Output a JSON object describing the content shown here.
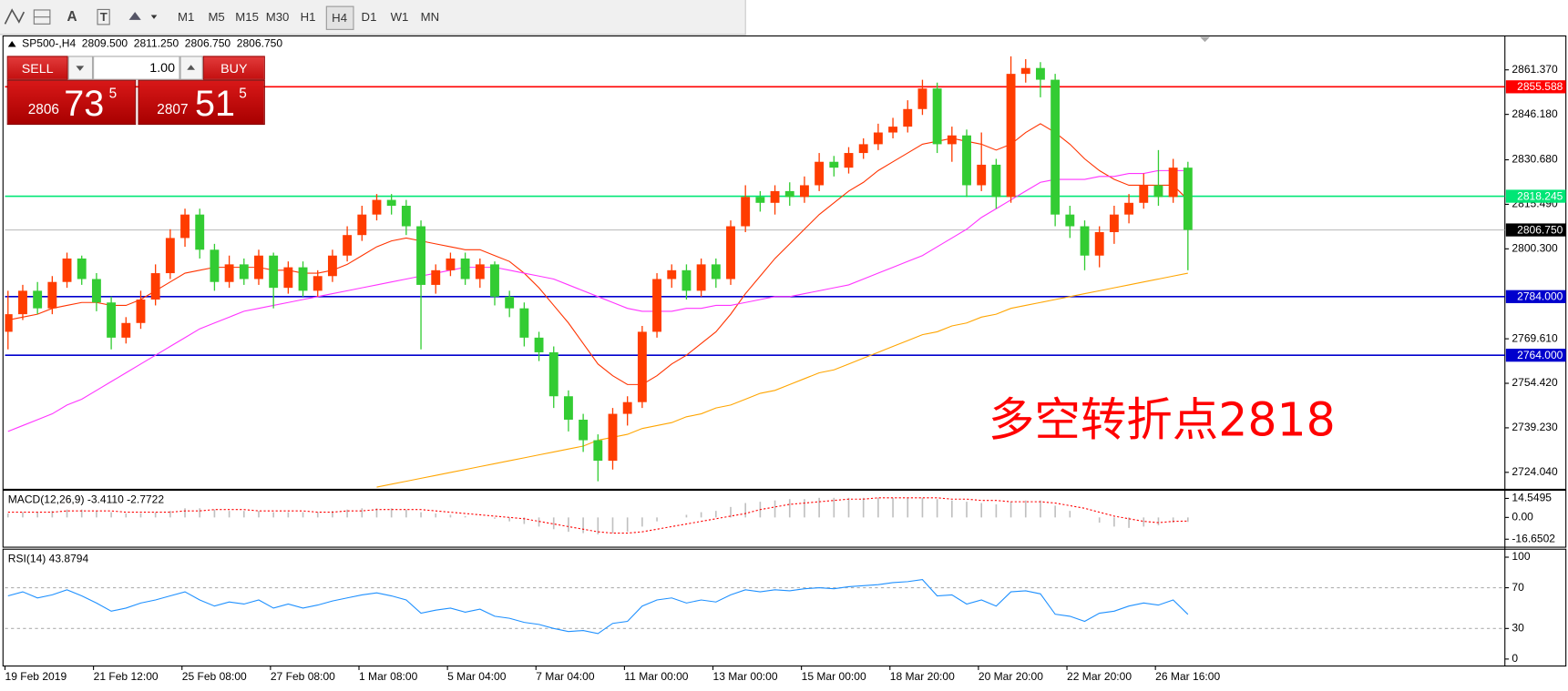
{
  "toolbar": {
    "tools": [
      "A",
      "T"
    ],
    "timeframes": [
      "M1",
      "M5",
      "M15",
      "M30",
      "H1",
      "H4",
      "D1",
      "W1",
      "MN"
    ],
    "selected": "H4"
  },
  "header": {
    "symbol": "SP500-,H4",
    "ohlc": [
      "2809.500",
      "2811.250",
      "2806.750",
      "2806.750"
    ]
  },
  "trade_panel": {
    "sell": "SELL",
    "buy": "BUY",
    "volume": "1.00",
    "sell_price": {
      "big": "2806",
      "pips": "73",
      "point": "5"
    },
    "buy_price": {
      "big": "2807",
      "pips": "51",
      "point": "5"
    }
  },
  "chart_data": [
    {
      "type": "candlestick",
      "categories": [
        "19 Feb 2019",
        null,
        null,
        null,
        null,
        null,
        "21 Feb 12:00",
        null,
        null,
        null,
        null,
        null,
        "25 Feb 08:00",
        null,
        null,
        null,
        null,
        null,
        "27 Feb 08:00",
        null,
        null,
        null,
        null,
        null,
        "1 Mar 08:00",
        null,
        null,
        null,
        null,
        null,
        "5 Mar 04:00",
        null,
        null,
        null,
        null,
        null,
        "7 Mar 04:00",
        null,
        null,
        null,
        null,
        null,
        "11 Mar 00:00",
        null,
        null,
        null,
        null,
        null,
        "13 Mar 00:00",
        null,
        null,
        null,
        null,
        null,
        "15 Mar 00:00",
        null,
        null,
        null,
        null,
        null,
        "18 Mar 20:00",
        null,
        null,
        null,
        null,
        null,
        "20 Mar 20:00",
        null,
        null,
        null,
        null,
        null,
        "22 Mar 20:00",
        null,
        null,
        null,
        null,
        null,
        "26 Mar 16:00",
        null,
        null
      ],
      "open": [
        2772,
        2778,
        2786,
        2780,
        2789,
        2797,
        2790,
        2782,
        2770,
        2775,
        2783,
        2792,
        2804,
        2812,
        2800,
        2789,
        2795,
        2790,
        2798,
        2787,
        2794,
        2786,
        2791,
        2798,
        2805,
        2812,
        2817,
        2815,
        2808,
        2788,
        2793,
        2797,
        2790,
        2795,
        2784,
        2780,
        2770,
        2765,
        2750,
        2742,
        2735,
        2728,
        2744,
        2748,
        2772,
        2790,
        2793,
        2786,
        2795,
        2790,
        2808,
        2818,
        2816,
        2820,
        2818,
        2822,
        2830,
        2828,
        2833,
        2836,
        2840,
        2842,
        2848,
        2855,
        2836,
        2839,
        2822,
        2829,
        2818,
        2860,
        2862,
        2858,
        2812,
        2808,
        2798,
        2806,
        2812,
        2816,
        2822,
        2818,
        2828
      ],
      "high": [
        2786,
        2788,
        2789,
        2791,
        2799,
        2798,
        2792,
        2784,
        2777,
        2786,
        2795,
        2807,
        2814,
        2814,
        2802,
        2798,
        2797,
        2800,
        2799,
        2796,
        2796,
        2793,
        2800,
        2808,
        2815,
        2819,
        2819,
        2817,
        2810,
        2795,
        2799,
        2799,
        2797,
        2796,
        2786,
        2782,
        2772,
        2767,
        2752,
        2744,
        2737,
        2746,
        2750,
        2774,
        2792,
        2795,
        2795,
        2797,
        2797,
        2810,
        2822,
        2820,
        2822,
        2823,
        2825,
        2833,
        2832,
        2835,
        2838,
        2843,
        2845,
        2851,
        2858,
        2857,
        2842,
        2841,
        2840,
        2831,
        2866,
        2865,
        2864,
        2860,
        2815,
        2810,
        2808,
        2815,
        2819,
        2826,
        2834,
        2831,
        2830
      ],
      "low": [
        2766,
        2776,
        2778,
        2778,
        2787,
        2788,
        2779,
        2766,
        2768,
        2773,
        2781,
        2790,
        2801,
        2797,
        2786,
        2787,
        2788,
        2788,
        2780,
        2785,
        2784,
        2784,
        2789,
        2796,
        2803,
        2810,
        2812,
        2805,
        2766,
        2785,
        2791,
        2788,
        2787,
        2781,
        2777,
        2767,
        2762,
        2746,
        2738,
        2731,
        2721,
        2725,
        2740,
        2746,
        2770,
        2787,
        2783,
        2784,
        2787,
        2788,
        2806,
        2813,
        2812,
        2815,
        2816,
        2820,
        2825,
        2826,
        2831,
        2834,
        2838,
        2840,
        2846,
        2833,
        2830,
        2818,
        2820,
        2814,
        2816,
        2857,
        2852,
        2808,
        2804,
        2793,
        2794,
        2802,
        2809,
        2814,
        2815,
        2816,
        2793
      ],
      "close": [
        2778,
        2786,
        2780,
        2789,
        2797,
        2790,
        2782,
        2770,
        2775,
        2783,
        2792,
        2804,
        2812,
        2800,
        2789,
        2795,
        2790,
        2798,
        2787,
        2794,
        2786,
        2791,
        2798,
        2805,
        2812,
        2817,
        2815,
        2808,
        2788,
        2793,
        2797,
        2790,
        2795,
        2784,
        2780,
        2770,
        2765,
        2750,
        2742,
        2735,
        2728,
        2744,
        2748,
        2772,
        2790,
        2793,
        2786,
        2795,
        2790,
        2808,
        2818,
        2816,
        2820,
        2818,
        2822,
        2830,
        2828,
        2833,
        2836,
        2840,
        2842,
        2848,
        2855,
        2836,
        2839,
        2822,
        2829,
        2818,
        2860,
        2862,
        2858,
        2812,
        2808,
        2798,
        2806,
        2812,
        2816,
        2822,
        2818,
        2828,
        2806.75
      ],
      "up_color": "#ff3c00",
      "down_color": "#33cc33",
      "series": [
        {
          "color": "#ff3300",
          "values": [
            2776,
            2777,
            2778,
            2780,
            2781,
            2782,
            2782,
            2781,
            2781,
            2783,
            2786,
            2789,
            2792,
            2793,
            2794,
            2794,
            2794,
            2794,
            2793,
            2793,
            2792,
            2792,
            2793,
            2795,
            2798,
            2801,
            2803,
            2804,
            2803,
            2802,
            2801,
            2800,
            2800,
            2798,
            2796,
            2792,
            2787,
            2781,
            2775,
            2768,
            2761,
            2757,
            2754,
            2754,
            2757,
            2761,
            2764,
            2768,
            2772,
            2778,
            2785,
            2791,
            2797,
            2802,
            2807,
            2812,
            2816,
            2820,
            2823,
            2827,
            2830,
            2833,
            2836,
            2837,
            2838,
            2837,
            2836,
            2834,
            2836,
            2840,
            2843,
            2840,
            2836,
            2831,
            2827,
            2824,
            2822,
            2822,
            2822,
            2822,
            2817
          ]
        },
        {
          "color": "#ff33ff",
          "values": [
            2738,
            2740,
            2742,
            2744,
            2747,
            2749,
            2752,
            2755,
            2758,
            2761,
            2764,
            2767,
            2770,
            2773,
            2775,
            2777,
            2779,
            2780,
            2781,
            2782,
            2783,
            2784,
            2785,
            2786,
            2787,
            2788,
            2789,
            2790,
            2791,
            2792,
            2793,
            2794,
            2794,
            2794,
            2793,
            2792,
            2791,
            2790,
            2788,
            2786,
            2784,
            2782,
            2780,
            2779,
            2779,
            2779,
            2780,
            2780,
            2781,
            2781,
            2782,
            2783,
            2784,
            2784,
            2785,
            2786,
            2787,
            2788,
            2790,
            2792,
            2794,
            2796,
            2798,
            2801,
            2804,
            2807,
            2811,
            2814,
            2817,
            2820,
            2823,
            2824,
            2824,
            2824,
            2825,
            2825,
            2826,
            2826,
            2827,
            2827,
            2827
          ]
        },
        {
          "color": "#ffa500",
          "values": [
            null,
            null,
            null,
            null,
            null,
            null,
            null,
            null,
            null,
            null,
            null,
            null,
            null,
            null,
            null,
            null,
            null,
            null,
            null,
            null,
            null,
            null,
            null,
            null,
            null,
            2719,
            2720,
            2721,
            2722,
            2723,
            2724,
            2725,
            2726,
            2727,
            2728,
            2729,
            2730,
            2731,
            2732,
            2733,
            2735,
            2736,
            2737,
            2739,
            2740,
            2741,
            2743,
            2744,
            2746,
            2747,
            2749,
            2751,
            2752,
            2754,
            2756,
            2758,
            2759,
            2761,
            2763,
            2765,
            2767,
            2769,
            2771,
            2772,
            2774,
            2775,
            2777,
            2778,
            2780,
            2781,
            2782,
            2783,
            2784,
            2785,
            2786,
            2787,
            2788,
            2789,
            2790,
            2791,
            2792
          ]
        }
      ],
      "ylim": [
        2718.6,
        2872.6
      ],
      "yticks": [
        {
          "value": 2861.37,
          "label": "2861.370"
        },
        {
          "value": 2846.18,
          "label": "2846.180"
        },
        {
          "value": 2830.68,
          "label": "2830.680"
        },
        {
          "value": 2815.49,
          "label": "2815.490"
        },
        {
          "value": 2800.3,
          "label": "2800.300"
        },
        {
          "value": 2769.61,
          "label": "2769.610"
        },
        {
          "value": 2754.42,
          "label": "2754.420"
        },
        {
          "value": 2739.23,
          "label": "2739.230"
        },
        {
          "value": 2724.04,
          "label": "2724.040"
        }
      ],
      "levels": [
        {
          "value": 2855.588,
          "label": "2855.588",
          "color": "#ff0000"
        },
        {
          "value": 2818.245,
          "label": "2818.245",
          "color": "#00e676"
        },
        {
          "value": 2806.75,
          "label": "2806.750",
          "color": "#c0c0c0",
          "label_bg": "#000000"
        },
        {
          "value": 2784,
          "label": "2784.000",
          "color": "#0000cd"
        },
        {
          "value": 2764,
          "label": "2764.000",
          "color": "#0000cd"
        }
      ],
      "annotation": "多空转折点2818",
      "grid": false
    },
    {
      "type": "bar",
      "title": "MACD(12,26,9) -3.4110 -2.7722",
      "series": [
        {
          "type": "bar",
          "color": "#c0c0c0",
          "values": [
            3,
            4,
            4,
            5,
            6,
            6,
            5,
            4,
            3,
            3,
            4,
            5,
            7,
            7,
            6,
            5,
            5,
            5,
            4,
            4,
            4,
            4,
            5,
            6,
            7,
            7,
            7,
            6,
            4,
            3,
            2,
            1,
            0,
            -1,
            -3,
            -5,
            -7,
            -9,
            -11,
            -12,
            -13,
            -12,
            -11,
            -7,
            -3,
            0,
            2,
            4,
            5,
            8,
            11,
            12,
            13,
            14,
            14,
            15,
            15,
            15,
            15,
            15,
            15,
            15,
            15,
            14,
            13,
            12,
            11,
            10,
            12,
            13,
            13,
            9,
            5,
            0,
            -4,
            -7,
            -8,
            -7,
            -6,
            -4,
            -3.411
          ]
        },
        {
          "type": "line",
          "style": "dotted",
          "color": "#ff0000",
          "values": [
            4,
            4,
            4,
            4,
            5,
            5,
            5,
            5,
            4,
            4,
            4,
            4,
            5,
            5,
            6,
            6,
            6,
            5,
            5,
            5,
            5,
            4,
            4,
            5,
            5,
            6,
            6,
            6,
            6,
            5,
            4,
            3,
            2,
            1,
            0,
            -1,
            -3,
            -5,
            -7,
            -9,
            -11,
            -12,
            -12,
            -11,
            -9,
            -7,
            -5,
            -3,
            -1,
            1,
            3,
            6,
            8,
            10,
            11,
            12,
            13,
            14,
            14,
            15,
            15,
            15,
            15,
            15,
            14,
            14,
            13,
            13,
            12,
            12,
            12,
            11,
            9,
            7,
            4,
            1,
            -1,
            -3,
            -4,
            -3,
            -2.7722
          ]
        }
      ],
      "ylim": [
        -22,
        20
      ],
      "yticks": [
        14.5495,
        {
          "value": 0,
          "label": "0.00"
        },
        -16.6502
      ]
    },
    {
      "type": "line",
      "title": "RSI(14) 43.8794",
      "series": [
        {
          "color": "#1e90ff",
          "values": [
            62,
            66,
            60,
            63,
            68,
            62,
            55,
            47,
            50,
            55,
            58,
            62,
            66,
            58,
            52,
            56,
            54,
            58,
            50,
            54,
            50,
            53,
            57,
            60,
            63,
            65,
            62,
            58,
            45,
            48,
            50,
            46,
            49,
            42,
            40,
            36,
            34,
            30,
            27,
            28,
            25,
            35,
            37,
            52,
            58,
            60,
            55,
            58,
            56,
            63,
            68,
            66,
            68,
            67,
            69,
            70,
            69,
            71,
            72,
            73,
            75,
            76,
            78,
            62,
            63,
            54,
            58,
            52,
            66,
            67,
            64,
            44,
            42,
            37,
            45,
            47,
            52,
            55,
            53,
            58,
            43.8794
          ]
        }
      ],
      "ylim": [
        0,
        100
      ],
      "yticks": [
        100,
        70,
        30,
        0
      ],
      "levels": [
        70,
        30
      ]
    }
  ]
}
